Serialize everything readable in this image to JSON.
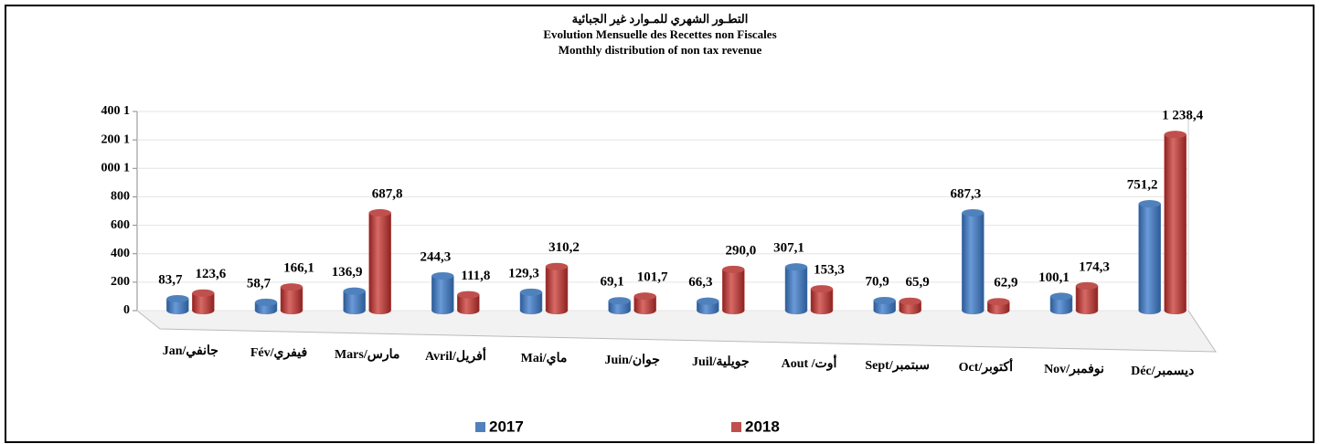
{
  "chart_data": {
    "type": "bar",
    "title": "التطـور الشهري  للمـوارد غير الجبائية",
    "subtitle": "Evolution Mensuelle des Recettes non Fiscales",
    "subtitle2": "Monthly distribution of non tax revenue",
    "categories": [
      "Jan/جانفي",
      "Fév/فيفري",
      "Mars/مارس",
      "Avril/أفريل",
      "Mai/ماي",
      "Juin/جوان",
      "Juil/جويلية",
      "Aout /أوت",
      "Sept/سبتمبر",
      "Oct/أكتوبر",
      "Nov/نوفمبر",
      "Déc/ديسمبر"
    ],
    "series": [
      {
        "name": "2017",
        "color": "#4f81bd",
        "values": [
          83.7,
          58.7,
          136.9,
          244.3,
          129.3,
          69.1,
          66.3,
          307.1,
          70.9,
          687.3,
          100.1,
          751.2
        ],
        "value_labels": [
          "83,7",
          "58,7",
          "136,9",
          "244,3",
          "129,3",
          "69,1",
          "66,3",
          "307,1",
          "70,9",
          "687,3",
          "100,1",
          "751,2"
        ]
      },
      {
        "name": "2018",
        "color": "#c0504d",
        "values": [
          123.6,
          166.1,
          687.8,
          111.8,
          310.2,
          101.7,
          290.0,
          153.3,
          65.9,
          62.9,
          174.3,
          1238.4
        ],
        "value_labels": [
          "123,6",
          "166,1",
          "687,8",
          "111,8",
          "310,2",
          "101,7",
          "290,0",
          "153,3",
          "65,9",
          "62,9",
          "174,3",
          "1 238,4"
        ]
      }
    ],
    "ylim": [
      0,
      1400
    ],
    "yticks": [
      0,
      200,
      400,
      600,
      800,
      {
        "value": 1000,
        "label": "000 1"
      },
      {
        "value": 1200,
        "label": "200 1"
      },
      {
        "value": 1400,
        "label": "400 1"
      }
    ],
    "legend": "bottom"
  }
}
